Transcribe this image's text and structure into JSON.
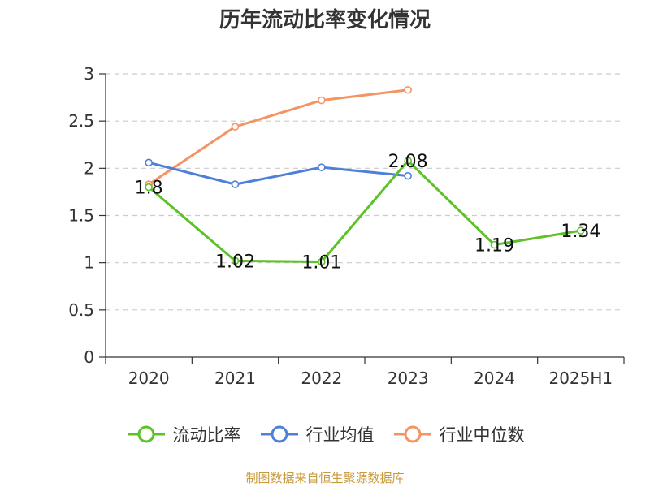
{
  "title": "历年流动比率变化情况",
  "source": "制图数据来自恒生聚源数据库",
  "legend": [
    {
      "name": "流动比率",
      "color": "#5cc227"
    },
    {
      "name": "行业均值",
      "color": "#4f80d8"
    },
    {
      "name": "行业中位数",
      "color": "#f59463"
    }
  ],
  "chart_data": {
    "type": "line",
    "categories": [
      "2020",
      "2021",
      "2022",
      "2023",
      "2024",
      "2025H1"
    ],
    "ylim": [
      0,
      3
    ],
    "yticks": [
      "0",
      "0.5",
      "1",
      "1.5",
      "2",
      "2.5",
      "3"
    ],
    "grid": true,
    "legend_position": "bottom",
    "series": [
      {
        "name": "流动比率",
        "color": "#5cc227",
        "values": [
          1.8,
          1.02,
          1.01,
          2.08,
          1.19,
          1.34
        ],
        "labels": [
          "1.8",
          "1.02",
          "1.01",
          "2.08",
          "1.19",
          "1.34"
        ]
      },
      {
        "name": "行业均值",
        "color": "#4f80d8",
        "values": [
          2.06,
          1.83,
          2.01,
          1.92,
          null,
          null
        ]
      },
      {
        "name": "行业中位数",
        "color": "#f59463",
        "values": [
          1.83,
          2.44,
          2.72,
          2.83,
          null,
          null
        ]
      }
    ]
  }
}
